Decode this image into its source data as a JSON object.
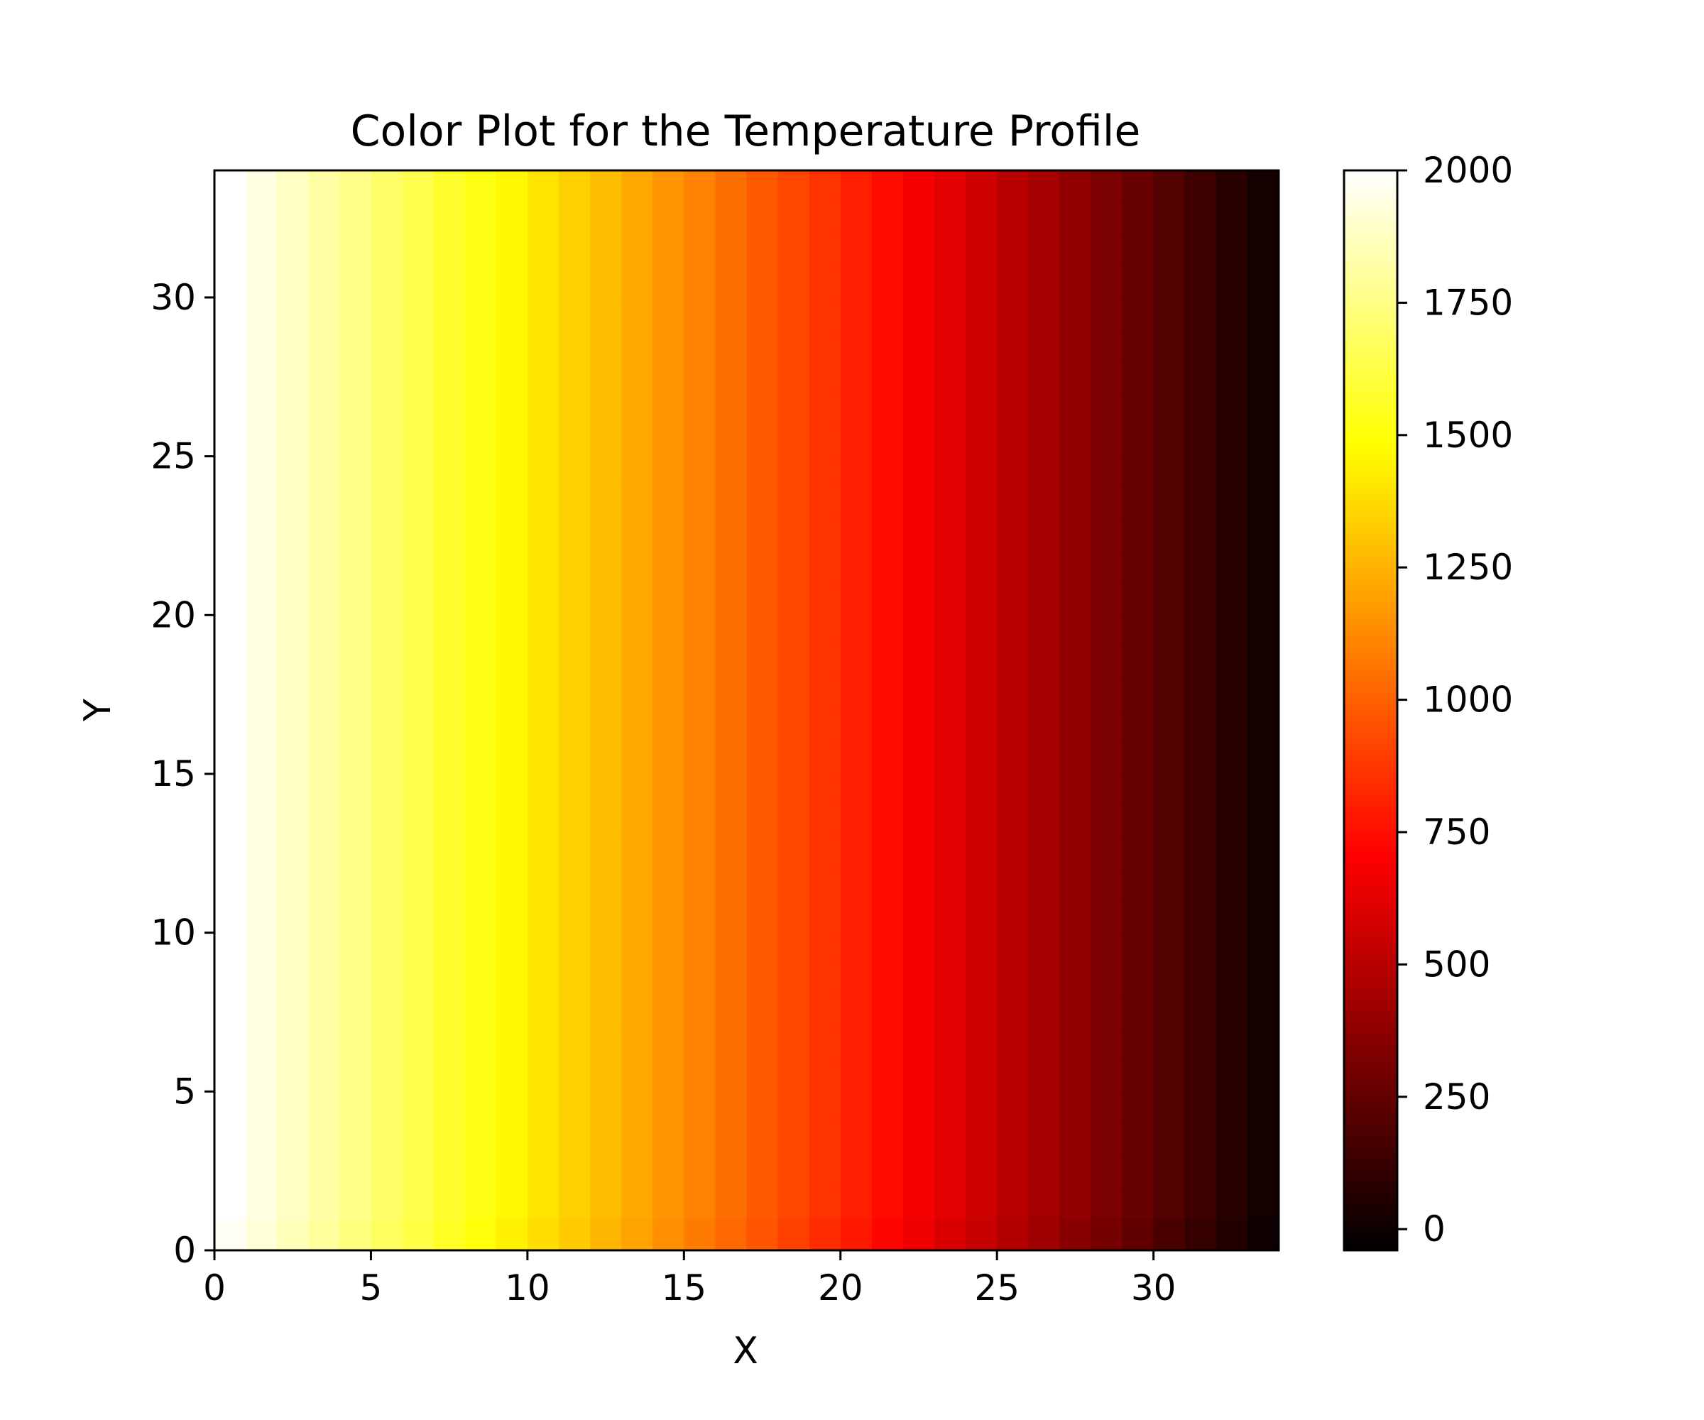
{
  "chart_data": {
    "type": "heatmap",
    "title": "Color Plot for the Temperature Profile",
    "xlabel": "X",
    "ylabel": "Y",
    "xlim": [
      0,
      34
    ],
    "ylim": [
      0,
      34
    ],
    "x_ticks": [
      0,
      5,
      10,
      15,
      20,
      25,
      30
    ],
    "y_ticks": [
      0,
      5,
      10,
      15,
      20,
      25,
      30
    ],
    "grid": false,
    "colormap": "hot",
    "colorbar": {
      "range": [
        -40,
        2000
      ],
      "ticks": [
        0,
        250,
        500,
        750,
        1000,
        1250,
        1500,
        1750,
        2000
      ]
    },
    "grid_size": [
      34,
      34
    ],
    "column_values": [
      2000,
      1940,
      1880,
      1820,
      1760,
      1700,
      1640,
      1580,
      1520,
      1460,
      1400,
      1340,
      1280,
      1220,
      1160,
      1100,
      1040,
      980,
      920,
      860,
      800,
      740,
      680,
      620,
      560,
      500,
      440,
      380,
      320,
      260,
      200,
      140,
      80,
      20
    ],
    "bottom_row_offset": -20
  }
}
